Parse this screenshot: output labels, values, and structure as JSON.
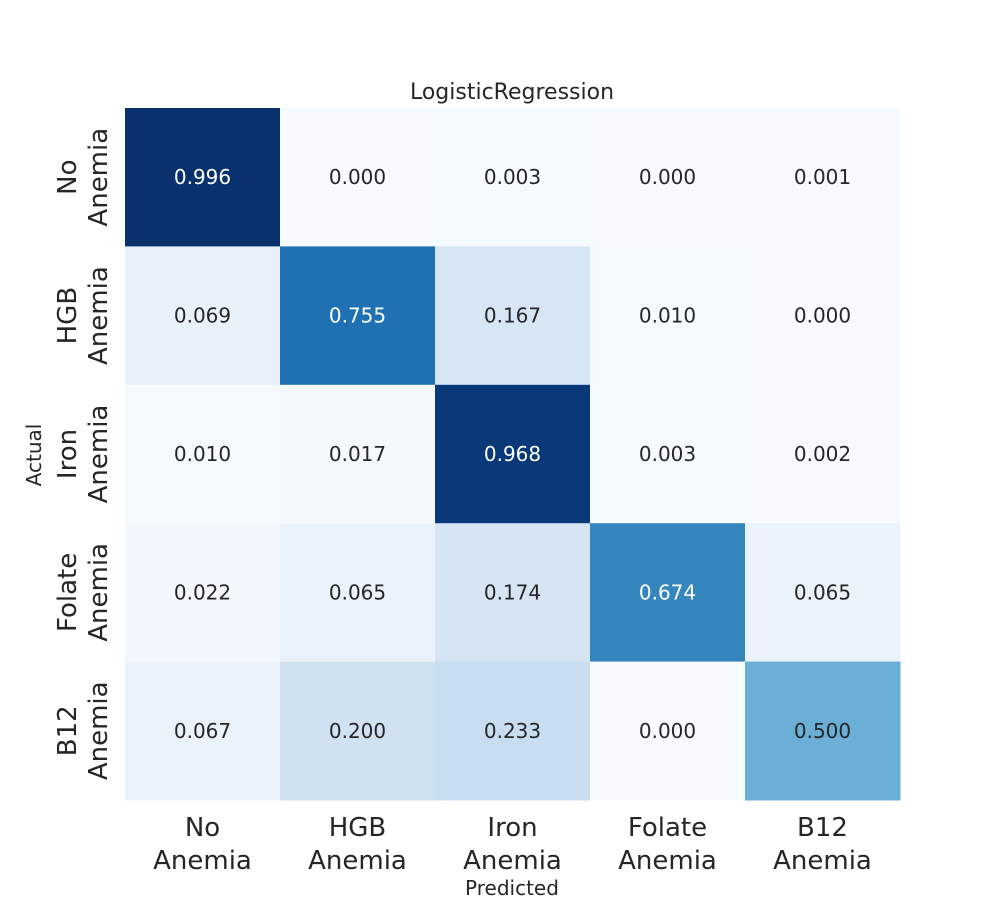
{
  "chart_data": {
    "type": "heatmap",
    "title": "LogisticRegression",
    "xlabel": "Predicted",
    "ylabel": "Actual",
    "x_categories": [
      "No Anemia",
      "HGB Anemia",
      "Iron Anemia",
      "Folate Anemia",
      "B12 Anemia"
    ],
    "y_categories": [
      "No Anemia",
      "HGB Anemia",
      "Iron Anemia",
      "Folate Anemia",
      "B12 Anemia"
    ],
    "values": [
      [
        0.996,
        0.0,
        0.003,
        0.0,
        0.001
      ],
      [
        0.069,
        0.755,
        0.167,
        0.01,
        0.0
      ],
      [
        0.01,
        0.017,
        0.968,
        0.003,
        0.002
      ],
      [
        0.022,
        0.065,
        0.174,
        0.674,
        0.065
      ],
      [
        0.067,
        0.2,
        0.233,
        0.0,
        0.5
      ]
    ],
    "value_format": "0.000",
    "colormap": "Blues",
    "vmin": 0,
    "vmax": 1,
    "colorbar": false,
    "grid": false
  }
}
